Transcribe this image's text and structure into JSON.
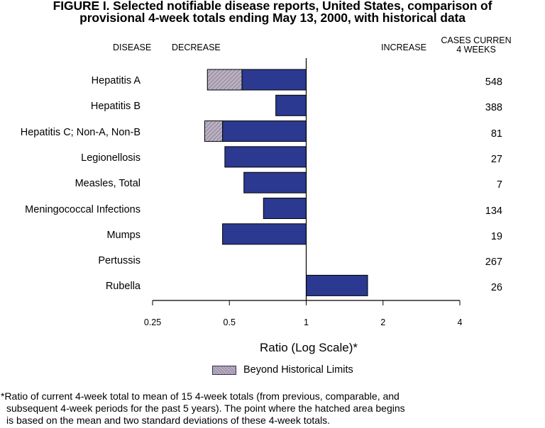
{
  "header": {
    "title_line1": "FIGURE I. Selected notifiable disease reports, United States, comparison of",
    "title_line2": "provisional 4-week totals ending May 13, 2000, with historical data"
  },
  "columns": {
    "disease": "DISEASE",
    "decrease": "DECREASE",
    "increase": "INCREASE",
    "cases_line1": "CASES CURREN",
    "cases_line2": "4 WEEKS"
  },
  "chart_data": {
    "type": "bar",
    "orientation": "horizontal",
    "x_scale": "log",
    "xlabel": "Ratio (Log Scale)*",
    "xlim": [
      0.25,
      4
    ],
    "xticks": [
      0.25,
      0.5,
      1,
      2,
      4
    ],
    "xtick_labels": [
      "0.25",
      "0.5",
      "1",
      "2",
      "4"
    ],
    "baseline": 1,
    "categories": [
      "Hepatitis A",
      "Hepatitis B",
      "Hepatitis C; Non-A, Non-B",
      "Legionellosis",
      "Measles, Total",
      "Meningococcal Infections",
      "Mumps",
      "Pertussis",
      "Rubella"
    ],
    "values": [
      0.41,
      0.76,
      0.4,
      0.48,
      0.57,
      0.68,
      0.47,
      1.0,
      1.74
    ],
    "historical_limit": [
      0.56,
      null,
      0.47,
      null,
      null,
      null,
      null,
      null,
      null
    ],
    "cases_current_4_weeks": [
      "548",
      "388",
      "81",
      "27",
      "7",
      "134",
      "19",
      "267",
      "26"
    ],
    "colors": {
      "bar": "#2b3990",
      "beyond": "#b9b3bd",
      "hatch": "#7a5a96",
      "outline": "#000000"
    },
    "legend": "Beyond Historical Limits"
  },
  "footnote": {
    "line1": "*Ratio of current 4-week total to mean of 15 4-week totals (from previous, comparable, and",
    "line2": "subsequent 4-week periods for the past 5 years). The point where the hatched area begins",
    "line3": "is based on the mean and two standard deviations of these 4-week totals."
  }
}
